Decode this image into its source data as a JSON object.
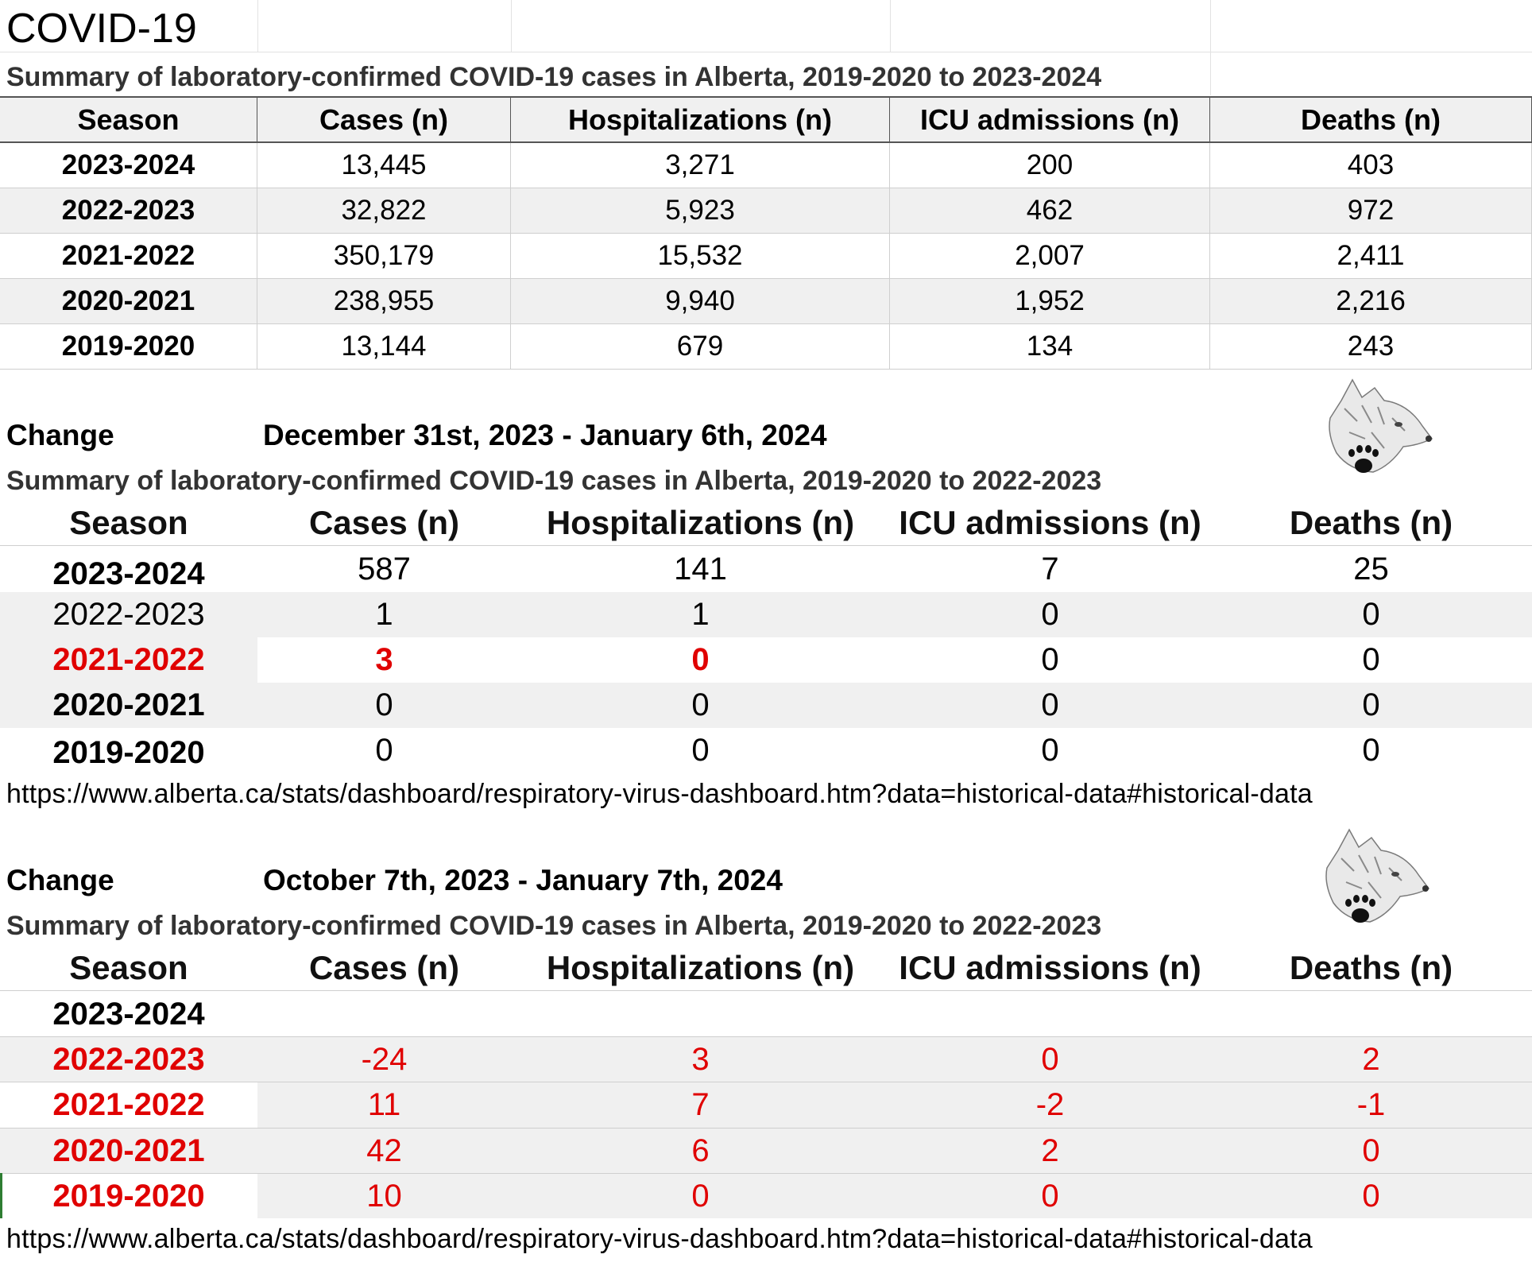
{
  "sheet_title": "COVID-19",
  "table1": {
    "subtitle": "Summary of laboratory-confirmed COVID-19 cases in Alberta, 2019-2020 to 2023-2024",
    "headers": [
      "Season",
      "Cases (n)",
      "Hospitalizations (n)",
      "ICU admissions (n)",
      "Deaths (n)"
    ],
    "rows": [
      [
        "2023-2024",
        "13,445",
        "3,271",
        "200",
        "403"
      ],
      [
        "2022-2023",
        "32,822",
        "5,923",
        "462",
        "972"
      ],
      [
        "2021-2022",
        "350,179",
        "15,532",
        "2,007",
        "2,411"
      ],
      [
        "2020-2021",
        "238,955",
        "9,940",
        "1,952",
        "2,216"
      ],
      [
        "2019-2020",
        "13,144",
        "679",
        "134",
        "243"
      ]
    ]
  },
  "table2": {
    "change_label": "Change",
    "date_range": "December 31st, 2023 - January 6th, 2024",
    "subtitle": "Summary of laboratory-confirmed COVID-19 cases in Alberta, 2019-2020 to 2022-2023",
    "headers": [
      "Season",
      "Cases (n)",
      "Hospitalizations (n)",
      "ICU admissions (n)",
      "Deaths (n)"
    ],
    "rows": [
      [
        "2023-2024",
        "587",
        "141",
        "7",
        "25"
      ],
      [
        "2022-2023",
        "1",
        "1",
        "0",
        "0"
      ],
      [
        "2021-2022",
        "3",
        "0",
        "0",
        "0"
      ],
      [
        "2020-2021",
        "0",
        "0",
        "0",
        "0"
      ],
      [
        "2019-2020",
        "0",
        "0",
        "0",
        "0"
      ]
    ],
    "url": "https://www.alberta.ca/stats/dashboard/respiratory-virus-dashboard.htm?data=historical-data#historical-data"
  },
  "table3": {
    "change_label": "Change",
    "date_range": "October 7th, 2023 - January 7th, 2024",
    "subtitle": "Summary of laboratory-confirmed COVID-19 cases in Alberta, 2019-2020 to 2022-2023",
    "headers": [
      "Season",
      "Cases (n)",
      "Hospitalizations (n)",
      "ICU admissions (n)",
      "Deaths (n)"
    ],
    "rows": [
      [
        "2023-2024",
        "",
        "",
        "",
        ""
      ],
      [
        "2022-2023",
        "-24",
        "3",
        "0",
        "2"
      ],
      [
        "2021-2022",
        "11",
        "7",
        "-2",
        "-1"
      ],
      [
        "2020-2021",
        "42",
        "6",
        "2",
        "0"
      ],
      [
        "2019-2020",
        "10",
        "0",
        "0",
        "0"
      ]
    ],
    "url": "https://www.alberta.ca/stats/dashboard/respiratory-virus-dashboard.htm?data=historical-data#historical-data"
  },
  "icons": [
    "wolf-logo-icon"
  ],
  "colors": {
    "negative_change": "#e00000",
    "header_fill": "#f0f0f0"
  }
}
